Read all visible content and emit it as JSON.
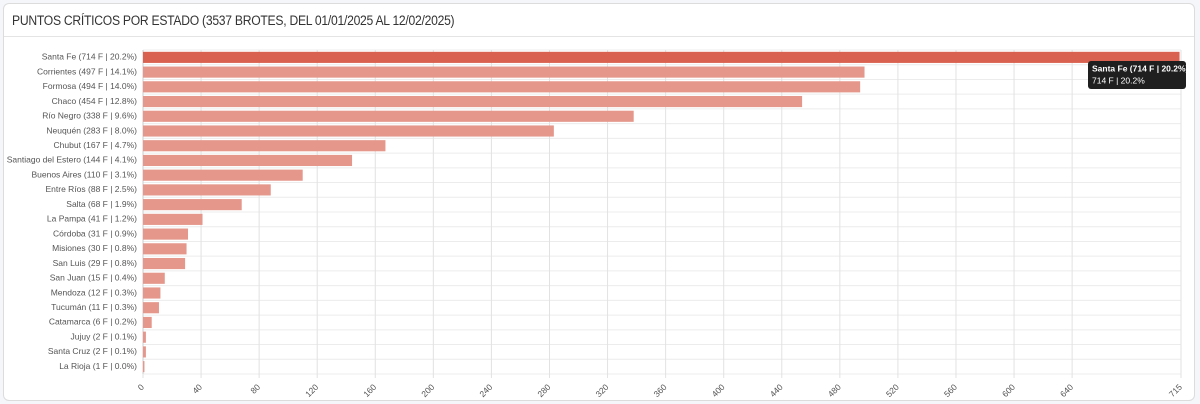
{
  "chart_data": {
    "type": "hbar",
    "title": "PUNTOS CRÍTICOS POR ESTADO (3537 BROTES, DEL 01/01/2025 AL 12/02/2025)",
    "categories": [
      "Santa Fe (714 F | 20.2%)",
      "Corrientes (497 F | 14.1%)",
      "Formosa (494 F | 14.0%)",
      "Chaco (454 F | 12.8%)",
      "Río Negro (338 F | 9.6%)",
      "Neuquén (283 F | 8.0%)",
      "Chubut (167 F | 4.7%)",
      "Santiago del Estero (144 F | 4.1%)",
      "Buenos Aires (110 F | 3.1%)",
      "Entre Ríos (88 F | 2.5%)",
      "Salta (68 F | 1.9%)",
      "La Pampa (41 F | 1.2%)",
      "Córdoba (31 F | 0.9%)",
      "Misiones (30 F | 0.8%)",
      "San Luis (29 F | 0.8%)",
      "San Juan (15 F | 0.4%)",
      "Mendoza (12 F | 0.3%)",
      "Tucumán (11 F | 0.3%)",
      "Catamarca (6 F | 0.2%)",
      "Jujuy (2 F | 0.1%)",
      "Santa Cruz (2 F | 0.1%)",
      "La Rioja (1 F | 0.0%)"
    ],
    "values": [
      714,
      497,
      494,
      454,
      338,
      283,
      167,
      144,
      110,
      88,
      68,
      41,
      31,
      30,
      29,
      15,
      12,
      11,
      6,
      2,
      2,
      1
    ],
    "color": "#e5978b",
    "highlight_color": "#d9614f",
    "xlim": [
      0,
      715
    ],
    "xticks": [
      0,
      40,
      80,
      120,
      160,
      200,
      240,
      280,
      320,
      360,
      400,
      440,
      480,
      520,
      560,
      600,
      640,
      715
    ],
    "grid": true,
    "tooltip": {
      "title": "Santa Fe (714 F | 20.2%)",
      "body": "714 F | 20.2%"
    }
  }
}
